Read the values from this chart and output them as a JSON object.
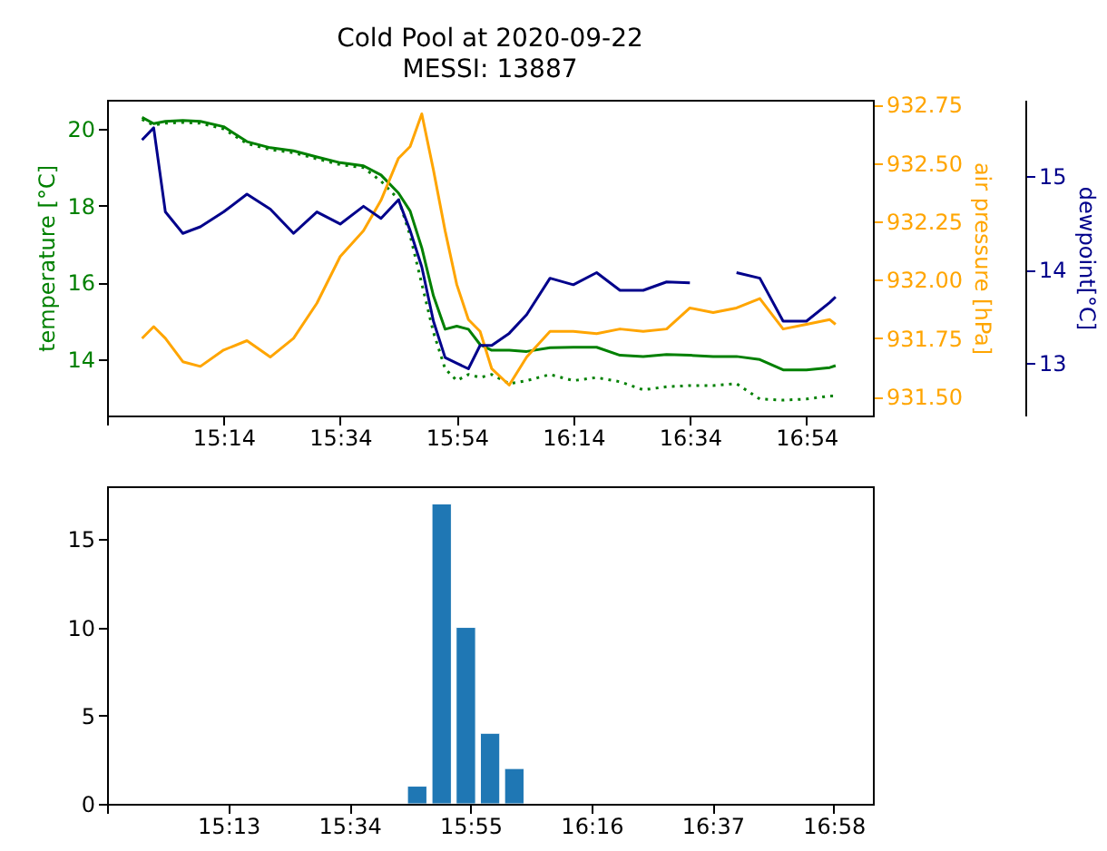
{
  "chart_data": [
    {
      "type": "line",
      "title": "Cold Pool at 2020-09-22",
      "subtitle": "MESSI: 13887",
      "ylabel": "temperature [°C]",
      "y2label": "air pressure [hPa]",
      "y3label": "dewpoint[°C]",
      "x": [
        15.0,
        15.0333,
        15.0667,
        15.1167,
        15.1667,
        15.2333,
        15.3,
        15.3667,
        15.4333,
        15.5,
        15.5667,
        15.6333,
        15.6833,
        15.7333,
        15.7667,
        15.8,
        15.8333,
        15.8667,
        15.9,
        15.9333,
        15.9667,
        16.0,
        16.05,
        16.1,
        16.1667,
        16.2333,
        16.3,
        16.3667,
        16.4333,
        16.5,
        16.5667,
        16.6333,
        16.7,
        16.7667,
        16.8333,
        16.9,
        16.9667,
        16.9833
      ],
      "xlim": [
        14.9,
        17.09
      ],
      "xticks": [
        {
          "value": 14.9,
          "label": null
        },
        {
          "value": 15.2333,
          "label": "15:14"
        },
        {
          "value": 15.5667,
          "label": "15:34"
        },
        {
          "value": 15.9,
          "label": "15:54"
        },
        {
          "value": 16.2333,
          "label": "16:14"
        },
        {
          "value": 16.5667,
          "label": "16:34"
        },
        {
          "value": 16.9,
          "label": "16:54"
        }
      ],
      "ylim": [
        12.53,
        20.76
      ],
      "yticks": [
        14,
        16,
        18,
        20
      ],
      "y2lim": [
        931.42,
        932.77
      ],
      "y2ticks": [
        {
          "value": 931.5,
          "label": "931.50"
        },
        931.75,
        {
          "value": 932,
          "label": "932.00"
        },
        932.25,
        {
          "value": 932.5,
          "label": "932.50"
        },
        932.75
      ],
      "y3lim": [
        12.44,
        15.82
      ],
      "y3ticks": [
        13,
        14,
        15
      ],
      "series": [
        {
          "color": "#008000",
          "values": [
            20.3,
            20.14,
            20.2,
            20.22,
            20.2,
            20.06,
            19.67,
            19.51,
            19.43,
            19.27,
            19.12,
            19.04,
            18.8,
            18.33,
            17.86,
            16.9,
            15.65,
            14.78,
            14.86,
            14.78,
            14.38,
            14.23,
            14.23,
            14.2,
            14.3,
            14.31,
            14.31,
            14.1,
            14.07,
            14.12,
            14.1,
            14.07,
            14.07,
            13.99,
            13.72,
            13.72,
            13.78,
            13.83
          ]
        },
        {
          "color": "#008000",
          "line_style": "dotted",
          "values": [
            20.25,
            20.1,
            20.15,
            20.17,
            20.15,
            20.0,
            19.62,
            19.46,
            19.38,
            19.22,
            19.07,
            18.99,
            18.64,
            18.17,
            17.22,
            15.96,
            14.7,
            13.75,
            13.44,
            13.6,
            13.52,
            13.6,
            13.36,
            13.44,
            13.6,
            13.44,
            13.52,
            13.41,
            13.2,
            13.28,
            13.31,
            13.31,
            13.36,
            12.96,
            12.93,
            12.96,
            13.04,
            13.04
          ]
        },
        {
          "color": "#ffa500",
          "axis": "y2",
          "values": [
            931.75,
            931.8,
            931.75,
            931.65,
            931.63,
            931.7,
            931.74,
            931.67,
            931.75,
            931.9,
            932.1,
            932.21,
            932.34,
            932.52,
            932.57,
            932.71,
            932.47,
            932.21,
            931.98,
            931.83,
            931.78,
            931.62,
            931.55,
            931.67,
            931.78,
            931.78,
            931.77,
            931.79,
            931.78,
            931.79,
            931.88,
            931.86,
            931.88,
            931.92,
            931.79,
            931.81,
            931.83,
            931.81
          ]
        },
        {
          "color": "#00008b",
          "axis": "y3",
          "values": [
            15.39,
            15.52,
            14.62,
            14.39,
            14.46,
            14.62,
            14.81,
            14.65,
            14.39,
            14.62,
            14.49,
            14.68,
            14.55,
            14.75,
            14.42,
            14.03,
            13.45,
            13.06,
            13.0,
            12.94,
            13.19,
            13.19,
            13.32,
            13.52,
            13.91,
            13.84,
            13.97,
            13.78,
            13.78,
            13.87,
            13.86,
            null,
            13.97,
            13.91,
            13.45,
            13.45,
            13.65,
            13.71
          ]
        }
      ]
    },
    {
      "type": "bar",
      "x": [
        15.7625,
        15.8333,
        15.9033,
        15.9733,
        16.0433
      ],
      "values": [
        1,
        17,
        10,
        4,
        2
      ],
      "color": "#1f77b4",
      "xlim": [
        14.866,
        17.08
      ],
      "xticks": [
        {
          "value": 14.8667,
          "label": null
        },
        {
          "value": 15.2167,
          "label": "15:13"
        },
        {
          "value": 15.5667,
          "label": "15:34"
        },
        {
          "value": 15.9167,
          "label": "15:55"
        },
        {
          "value": 16.2667,
          "label": "16:16"
        },
        {
          "value": 16.6167,
          "label": "16:37"
        },
        {
          "value": 16.9667,
          "label": "16:58"
        }
      ],
      "ylim": [
        0,
        18
      ],
      "yticks": [
        0,
        5,
        10,
        15
      ]
    }
  ]
}
